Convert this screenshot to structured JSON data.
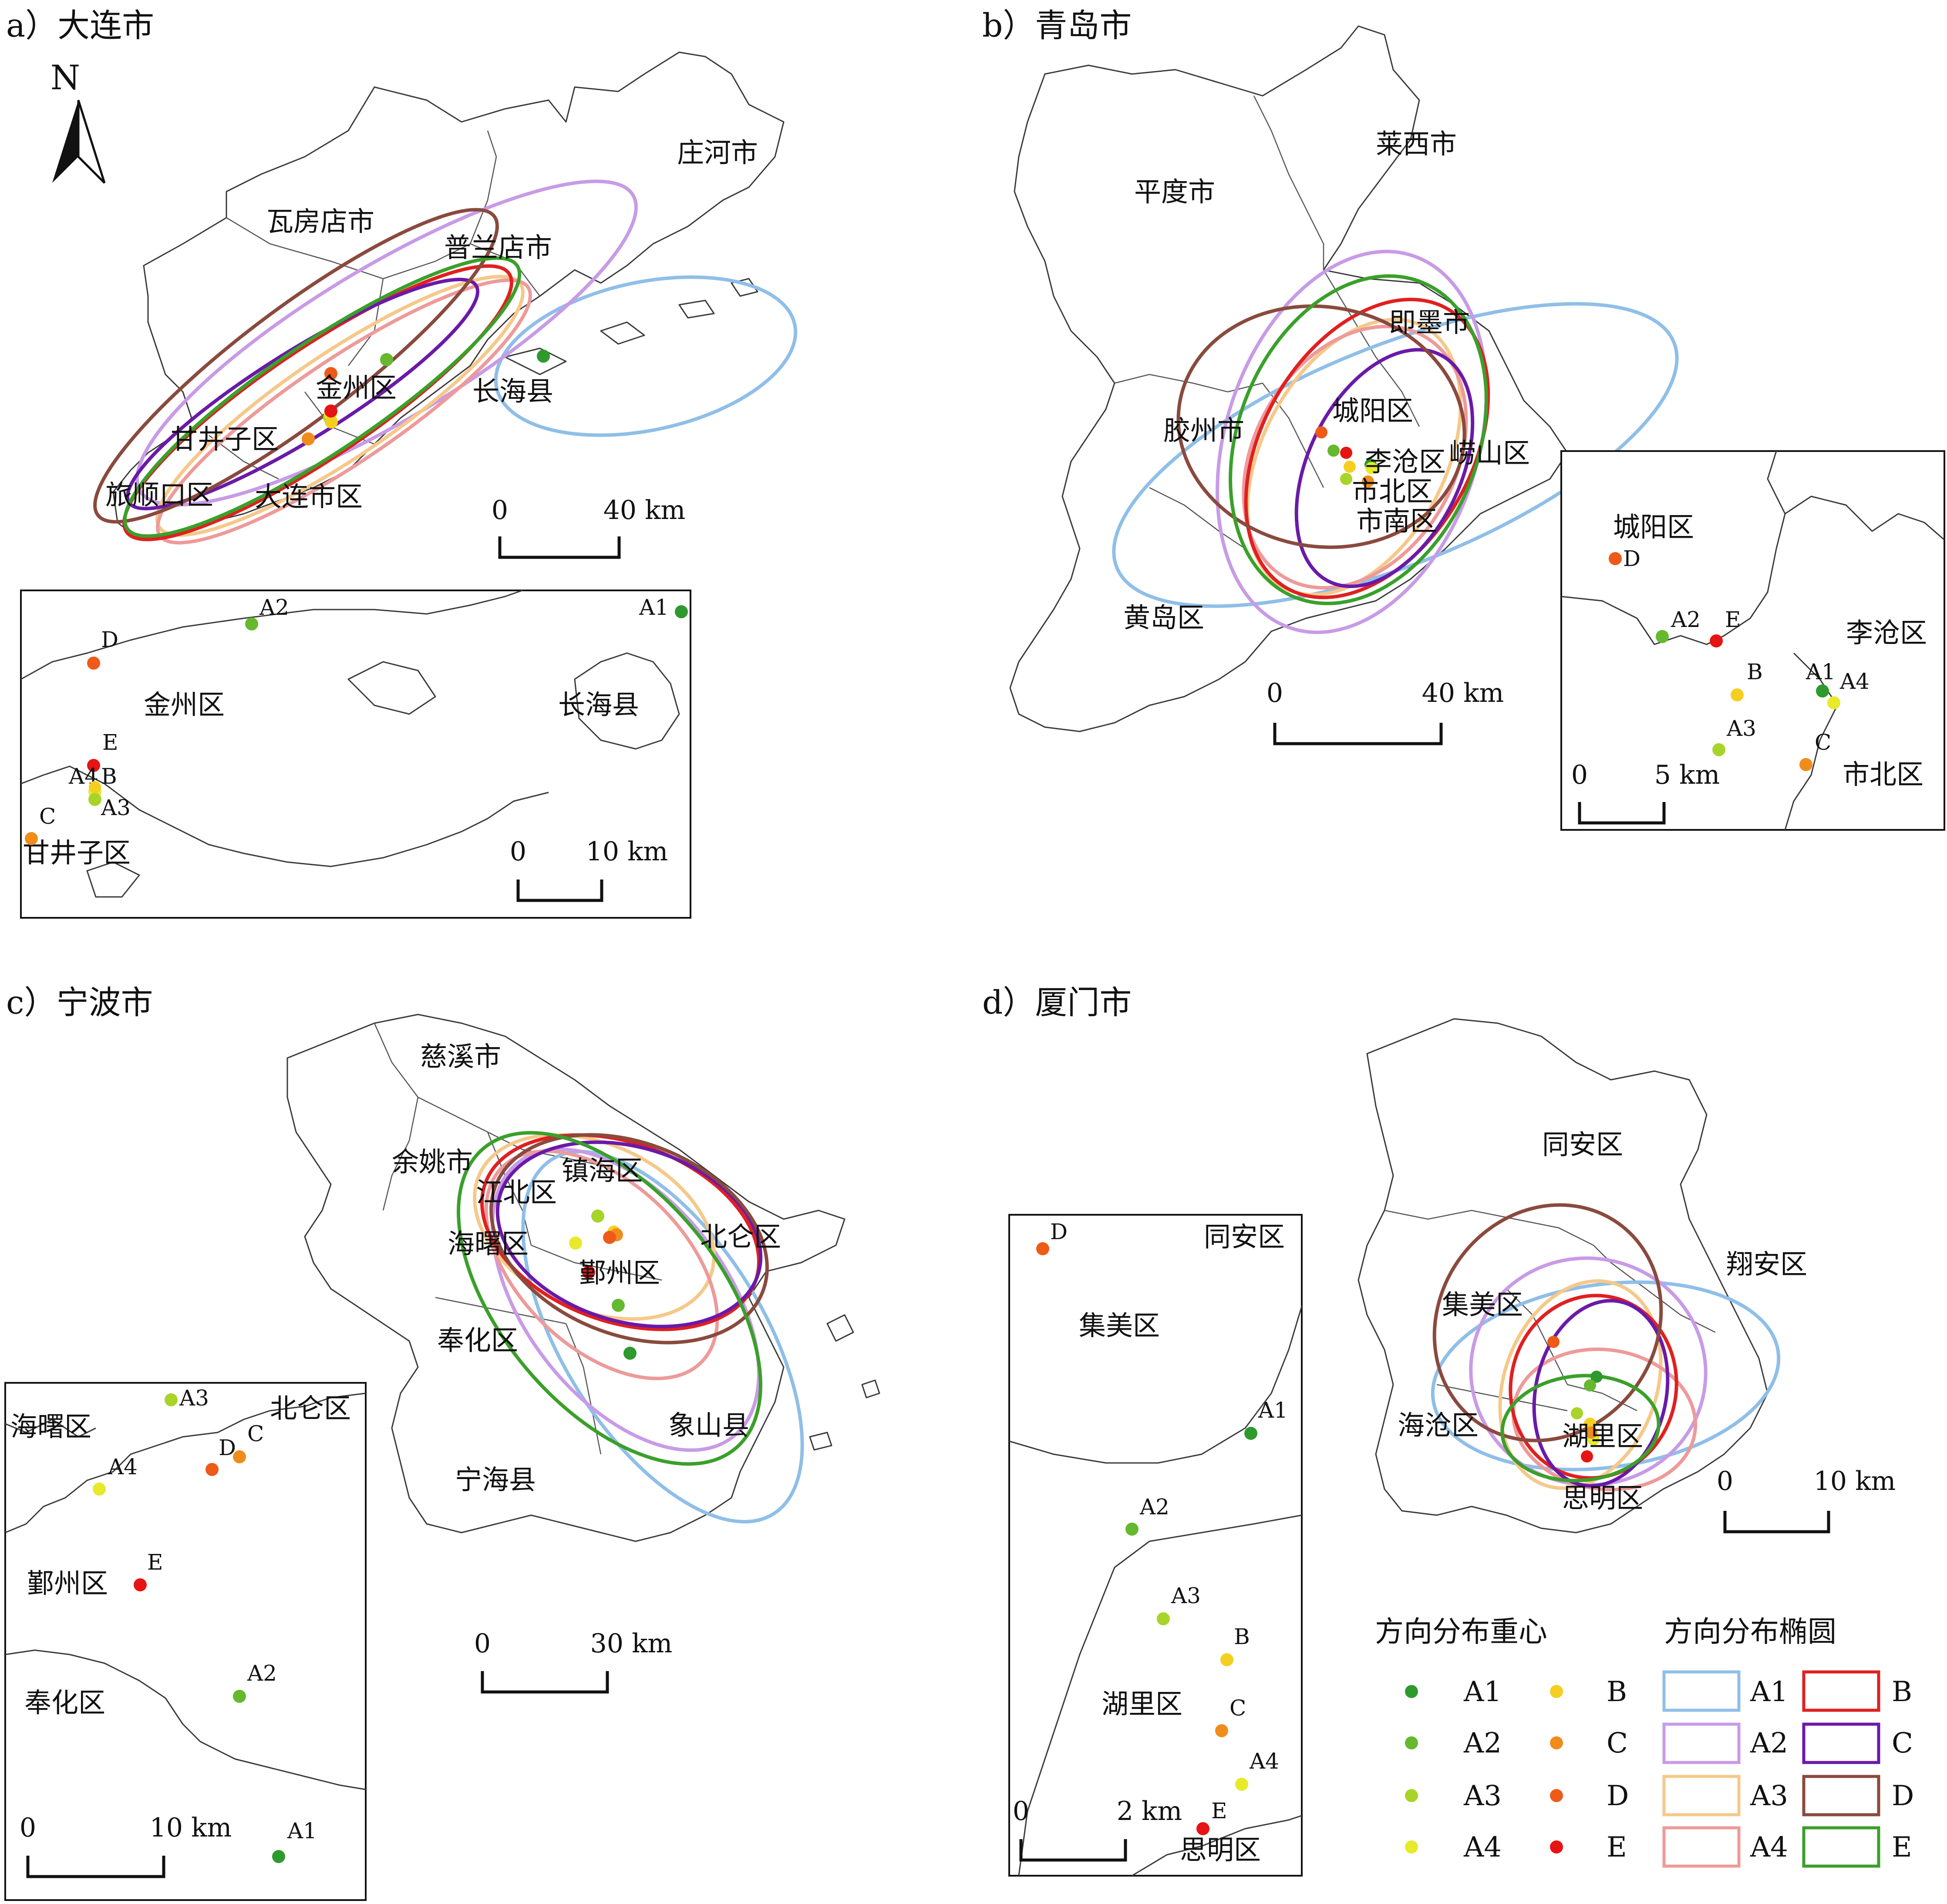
{
  "colors": {
    "A1": "#2e9a2e",
    "A2": "#66b82e",
    "A3": "#a8d42a",
    "A4": "#e6ea2a",
    "B": "#f5cf20",
    "C": "#f08c1c",
    "D": "#ee5a18",
    "E": "#e61414",
    "ellA1": "#8fbfe8",
    "ellA2": "#c89be6",
    "ellA3": "#f5c98a",
    "ellA4": "#ee9a9a",
    "ellB": "#e02020",
    "ellC": "#6a1aa8",
    "ellD": "#8a4a3e",
    "ellE": "#3aa02a"
  },
  "north_arrow": {
    "label": "N"
  },
  "legend": {
    "centroid_title": "方向分布重心",
    "ellipse_title": "方向分布椭圆",
    "centroid_items": [
      "A1",
      "A2",
      "A3",
      "A4",
      "B",
      "C",
      "D",
      "E"
    ],
    "ellipse_items": [
      "A1",
      "A2",
      "A3",
      "A4",
      "B",
      "C",
      "D",
      "E"
    ]
  },
  "panels": [
    {
      "title": "a）大连市",
      "places": [
        "瓦房店市",
        "普兰店市",
        "庄河市",
        "金州区",
        "长海县",
        "甘井子区",
        "旅顺口区",
        "大连市区"
      ],
      "scale": {
        "zero": "0",
        "dist": "40 km"
      },
      "inset": {
        "places": [
          "金州区",
          "长海县",
          "甘井子区"
        ],
        "points": [
          "A2",
          "A1",
          "D",
          "E",
          "A4",
          "B",
          "A3",
          "C"
        ],
        "scale": {
          "zero": "0",
          "dist": "10 km"
        }
      }
    },
    {
      "title": "b）青岛市",
      "places": [
        "平度市",
        "莱西市",
        "即墨市",
        "胶州市",
        "城阳区",
        "李沧区",
        "崂山区",
        "市北区",
        "市南区",
        "黄岛区"
      ],
      "scale": {
        "zero": "0",
        "dist": "40 km"
      },
      "inset": {
        "places": [
          "城阳区",
          "李沧区",
          "市北区"
        ],
        "points": [
          "D",
          "A2",
          "E",
          "B",
          "A1",
          "A4",
          "A3",
          "C"
        ],
        "scale": {
          "zero": "0",
          "dist": "5 km"
        }
      }
    },
    {
      "title": "c）宁波市",
      "places": [
        "慈溪市",
        "余姚市",
        "江北区",
        "镇海区",
        "海曙区",
        "北仑区",
        "鄞州区",
        "奉化区",
        "象山县",
        "宁海县"
      ],
      "scale": {
        "zero": "0",
        "dist": "30 km"
      },
      "inset": {
        "places": [
          "海曙区",
          "北仑区",
          "鄞州区",
          "奉化区"
        ],
        "points": [
          "A3",
          "D",
          "C",
          "A4",
          "E",
          "A2",
          "A1"
        ],
        "scale": {
          "zero": "0",
          "dist": "10 km"
        }
      }
    },
    {
      "title": "d）厦门市",
      "places": [
        "同安区",
        "翔安区",
        "集美区",
        "海沧区",
        "湖里区",
        "思明区"
      ],
      "scale": {
        "zero": "0",
        "dist": "10 km"
      },
      "inset": {
        "places": [
          "同安区",
          "集美区",
          "湖里区",
          "思明区"
        ],
        "points": [
          "D",
          "A1",
          "A2",
          "A3",
          "B",
          "C",
          "A4",
          "E"
        ],
        "scale": {
          "zero": "0",
          "dist": "2 km"
        }
      }
    }
  ]
}
